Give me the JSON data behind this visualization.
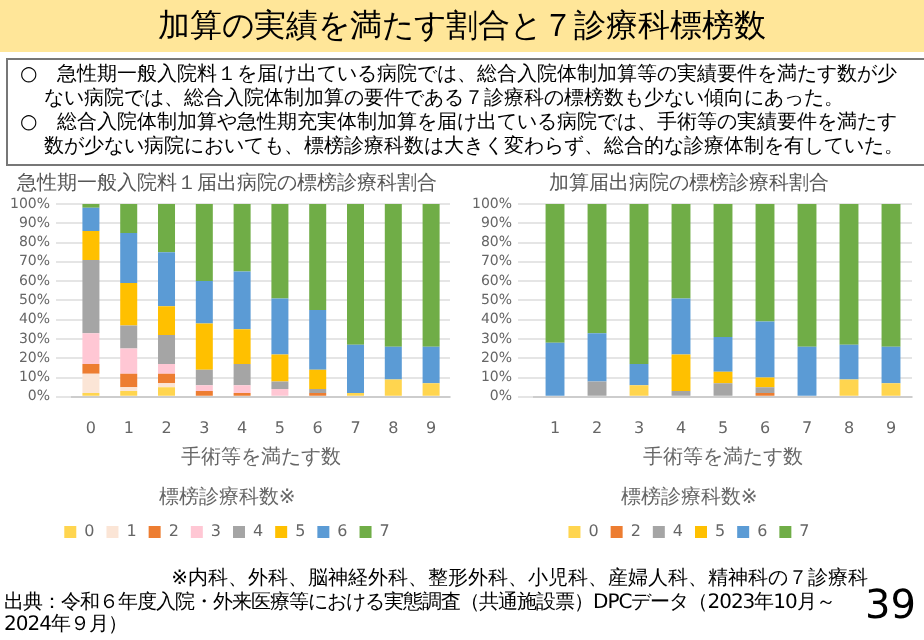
{
  "chart_data": [
    {
      "type": "other",
      "title": "加算の実績を満たす割合と７診療科標榜数",
      "annotations": [
        "○　急性期一般入院料１を届け出ている病院では、総合入院体制加算等の実績要件を満たす数が少ない病院では、総合入院体制加算の要件である７診療科の標榜数も少ない傾向にあった。",
        "○　総合入院体制加算や急性期充実体制加算を届け出ている病院では、手術等の実績要件を満たす数が少ない病院においても、標榜診療科数は大きく変わらず、総合的な診療体制を有していた。",
        "※内科、外科、脳神経外科、整形外科、小児科、産婦人科、精神科の７診療科",
        "出典：令和６年度入院・外来医療等における実態調査（共通施設票）DPCデータ（2023年10月～2024年９月）",
        "39"
      ]
    },
    {
      "type": "bar",
      "title": "急性期一般入院料１届出病院の標榜診療科割合",
      "xlabel": "手術等を満たす数",
      "legend_title": "標榜診療科数※",
      "categories": [
        "0",
        "1",
        "2",
        "3",
        "4",
        "5",
        "6",
        "7",
        "8",
        "9"
      ],
      "stacked": true,
      "grid": "y",
      "legend": "bottom",
      "ylim": [
        0,
        100
      ],
      "yticks": [
        {
          "value": 0,
          "label": "0%"
        },
        {
          "value": 10,
          "label": "10%"
        },
        {
          "value": 20,
          "label": "20%"
        },
        {
          "value": 30,
          "label": "30%"
        },
        {
          "value": 40,
          "label": "40%"
        },
        {
          "value": 50,
          "label": "50%"
        },
        {
          "value": 60,
          "label": "60%"
        },
        {
          "value": 70,
          "label": "70%"
        },
        {
          "value": 80,
          "label": "80%"
        },
        {
          "value": 90,
          "label": "90%"
        },
        {
          "value": 100,
          "label": "100%"
        }
      ],
      "series": [
        {
          "name": "0",
          "color": "#ffd54f",
          "values": [
            2,
            3,
            5,
            0,
            0,
            0,
            0,
            2,
            9,
            7
          ]
        },
        {
          "name": "1",
          "color": "#fbe5d6",
          "values": [
            10,
            2,
            2,
            0,
            0,
            0,
            0,
            0,
            0,
            0
          ]
        },
        {
          "name": "2",
          "color": "#ed7d31",
          "values": [
            5,
            7,
            5,
            3,
            2,
            0,
            2,
            0,
            0,
            0
          ]
        },
        {
          "name": "3",
          "color": "#ffc7d4",
          "values": [
            16,
            13,
            5,
            3,
            4,
            4,
            0,
            0,
            0,
            0
          ]
        },
        {
          "name": "4",
          "color": "#a5a5a5",
          "values": [
            38,
            12,
            15,
            8,
            11,
            4,
            2,
            0,
            0,
            0
          ]
        },
        {
          "name": "5",
          "color": "#ffc000",
          "values": [
            15,
            22,
            15,
            24,
            18,
            14,
            10,
            0,
            0,
            0
          ]
        },
        {
          "name": "6",
          "color": "#5b9bd5",
          "values": [
            12,
            26,
            28,
            22,
            30,
            29,
            31,
            25,
            17,
            19
          ]
        },
        {
          "name": "7",
          "color": "#70ad47",
          "values": [
            2,
            15,
            25,
            40,
            35,
            49,
            55,
            73,
            74,
            74
          ]
        }
      ]
    },
    {
      "type": "bar",
      "title": "加算届出病院の標榜診療科割合",
      "xlabel": "手術等を満たす数",
      "legend_title": "標榜診療科数※",
      "categories": [
        "1",
        "2",
        "3",
        "4",
        "5",
        "6",
        "7",
        "8",
        "9"
      ],
      "stacked": true,
      "grid": "y",
      "legend": "bottom",
      "ylim": [
        0,
        100
      ],
      "yticks": [
        {
          "value": 0,
          "label": "0%"
        },
        {
          "value": 10,
          "label": "10%"
        },
        {
          "value": 20,
          "label": "20%"
        },
        {
          "value": 30,
          "label": "30%"
        },
        {
          "value": 40,
          "label": "40%"
        },
        {
          "value": 50,
          "label": "50%"
        },
        {
          "value": 60,
          "label": "60%"
        },
        {
          "value": 70,
          "label": "70%"
        },
        {
          "value": 80,
          "label": "80%"
        },
        {
          "value": 90,
          "label": "90%"
        },
        {
          "value": 100,
          "label": "100%"
        }
      ],
      "series": [
        {
          "name": "0",
          "color": "#ffd54f",
          "values": [
            0,
            0,
            6,
            0,
            0,
            0,
            0,
            9,
            7
          ]
        },
        {
          "name": "2",
          "color": "#ed7d31",
          "values": [
            0,
            0,
            0,
            0,
            0,
            2,
            0,
            0,
            0
          ]
        },
        {
          "name": "4",
          "color": "#a5a5a5",
          "values": [
            0,
            8,
            0,
            3,
            7,
            3,
            0,
            0,
            0
          ]
        },
        {
          "name": "5",
          "color": "#ffc000",
          "values": [
            0,
            0,
            0,
            19,
            6,
            5,
            0,
            0,
            0
          ]
        },
        {
          "name": "6",
          "color": "#5b9bd5",
          "values": [
            28,
            25,
            11,
            29,
            18,
            29,
            26,
            18,
            19
          ]
        },
        {
          "name": "7",
          "color": "#70ad47",
          "values": [
            72,
            67,
            83,
            49,
            69,
            61,
            74,
            73,
            74
          ]
        }
      ]
    }
  ]
}
